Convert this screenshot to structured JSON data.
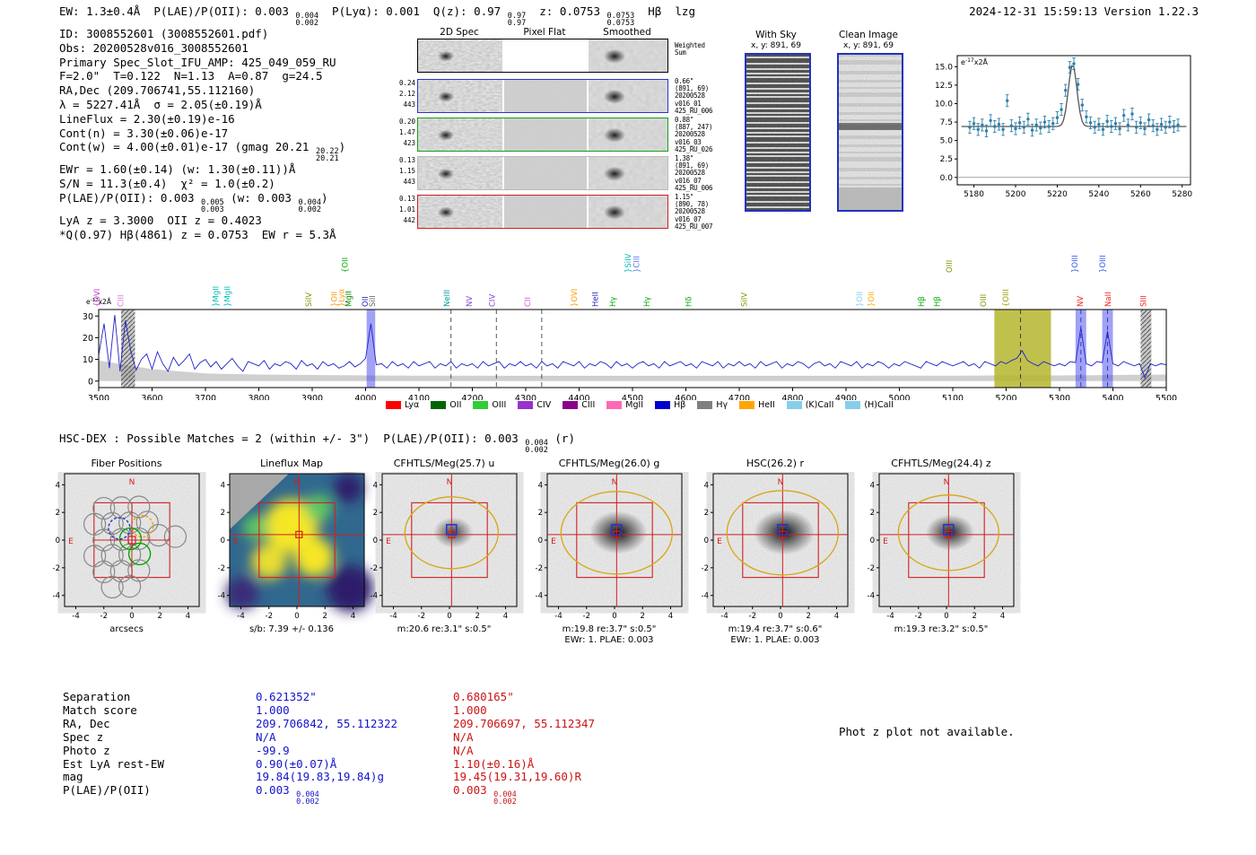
{
  "header": {
    "left_segments": [
      "EW: 1.3±0.4Å  P(LAE)/P(OII): 0.003 ",
      {
        "hi": "0.004",
        "lo": "0.002"
      },
      "  P(Lyα): 0.001  Q(z): 0.97 ",
      {
        "hi": "0.97",
        "lo": "0.97"
      },
      "  z: 0.0753 ",
      {
        "hi": "0.0753",
        "lo": "0.0753"
      },
      "  Hβ  lzg"
    ],
    "timestamp": "2024-12-31 15:59:13  Version 1.22.3"
  },
  "info_lines": [
    [
      "ID: 3008552601 (3008552601.pdf)"
    ],
    [
      "Obs: 20200528v016_3008552601"
    ],
    [
      "Primary Spec_Slot_IFU_AMP: 425_049_059_RU"
    ],
    [
      "F=2.0\"  T=0.122  N=1.13  A=0.87  g=24.5"
    ],
    [
      "RA,Dec (209.706741,55.112160)"
    ],
    [
      "λ = 5227.41Å  σ = 2.05(±0.19)Å"
    ],
    [
      "LineFlux = 2.30(±0.19)e-16"
    ],
    [
      "Cont(n) = 3.30(±0.06)e-17"
    ],
    [
      "Cont(w) = 4.00(±0.01)e-17 (gmag 20.21 ",
      {
        "hi": "20.22",
        "lo": "20.21"
      },
      ")"
    ],
    [
      "EWr = 1.60(±0.14) (w: 1.30(±0.11))Å"
    ],
    [
      "S/N = 11.3(±0.4)  χ² = 1.0(±0.2)"
    ],
    [
      "P(LAE)/P(OII): 0.003 ",
      {
        "hi": "0.005",
        "lo": "0.003"
      },
      " (w: 0.003 ",
      {
        "hi": "0.004",
        "lo": "0.002"
      },
      ")"
    ],
    [
      "LyA z = 3.3000  OII z = 0.4023"
    ],
    [
      "*Q(0.97) Hβ(4861) z = 0.0753  EW r = 5.3Å"
    ]
  ],
  "spec2d": {
    "col_headers": [
      "2D Spec",
      "Pixel Flat",
      "Smoothed"
    ],
    "weighted_sum": [
      "Weighted",
      "Sum"
    ],
    "rows": [
      {
        "left": [],
        "right": [],
        "border": "#000000"
      },
      {
        "left": [
          "0.24",
          "2.12",
          "443"
        ],
        "right": [
          "0.66\"",
          "(891, 69)",
          "20200528",
          "v016_01",
          "425_RU_006"
        ],
        "border": "#2a35c8"
      },
      {
        "left": [
          "0.20",
          "1.47",
          "423"
        ],
        "right": [
          "0.88\"",
          "(887, 247)",
          "20200528",
          "v016_03",
          "425_RU_026"
        ],
        "border": "#18a018"
      },
      {
        "left": [
          "0.13",
          "1.15",
          "443"
        ],
        "right": [
          "1.38\"",
          "(891, 69)",
          "20200528",
          "v016_07",
          "425_RU_006"
        ],
        "border": "none"
      },
      {
        "left": [
          "0.13",
          "1.01",
          "442"
        ],
        "right": [
          "1.15\"",
          "(890, 78)",
          "20200528",
          "v016_07",
          "425_RU_007"
        ],
        "border": "#d02020"
      }
    ]
  },
  "sky_panels": [
    {
      "title": "With Sky",
      "subtitle": "x, y: 891, 69"
    },
    {
      "title": "Clean Image",
      "subtitle": "x, y: 891, 69"
    }
  ],
  "chart_data": [
    {
      "type": "scatter",
      "name": "line-fit-zoom",
      "flux_label": {
        "base": "e",
        "sup": "-17",
        "rest": "x2Å"
      },
      "x_start": 5178,
      "x_step": 2,
      "y": [
        6.8,
        7.3,
        6.5,
        7.1,
        6.3,
        7.7,
        6.9,
        7.2,
        6.5,
        10.4,
        7.0,
        6.6,
        7.4,
        6.8,
        7.9,
        6.4,
        7.1,
        6.7,
        7.5,
        6.9,
        7.3,
        8.1,
        9.2,
        11.8,
        14.9,
        15.4,
        12.6,
        9.8,
        8.2,
        7.4,
        6.8,
        7.2,
        6.5,
        7.6,
        6.9,
        7.3,
        6.6,
        8.4,
        7.1,
        8.6,
        6.8,
        7.4,
        6.6,
        7.8,
        7.0,
        6.5,
        7.2,
        6.8,
        7.5,
        6.9,
        7.1
      ],
      "yerr": 0.8,
      "fit": {
        "center": 5227.41,
        "sigma": 2.05,
        "peak": 15.3,
        "continuum": 6.9
      },
      "xticks": [
        5180,
        5200,
        5220,
        5240,
        5260,
        5280
      ],
      "yticks": [
        "0.0",
        "2.5",
        "5.0",
        "7.5",
        "10.0",
        "12.5",
        "15.0"
      ],
      "ytick_vals": [
        0,
        2.5,
        5,
        7.5,
        10,
        12.5,
        15
      ],
      "xlim": [
        5172,
        5284
      ],
      "ylim": [
        -1,
        16.5
      ],
      "point_color": "#2e7fa8",
      "fit_color": "#555555"
    },
    {
      "type": "line",
      "name": "full-spectrum",
      "flux_label": {
        "base": "e",
        "sup": "-17",
        "rest": "x2Å"
      },
      "x_start": 3500,
      "x_step": 10,
      "values": [
        12,
        26.5,
        6,
        30.5,
        4.5,
        28,
        14,
        5,
        10,
        12.5,
        5.5,
        13.5,
        8,
        4.5,
        11,
        7,
        9.5,
        12.5,
        5.5,
        8.5,
        10,
        6.5,
        9,
        5.5,
        8,
        10.5,
        7,
        4.5,
        9,
        8,
        7,
        9.5,
        5.5,
        8,
        7,
        9,
        8,
        5.5,
        9.5,
        7,
        8,
        5.5,
        9,
        7,
        8,
        6,
        7,
        9,
        6.5,
        8,
        10.5,
        26.5,
        7.5,
        8,
        6,
        9,
        7,
        8,
        6,
        9,
        7,
        8,
        9,
        6,
        8,
        7,
        9,
        6,
        8,
        7,
        8,
        6,
        9,
        7,
        8,
        9,
        6,
        8,
        7,
        9,
        7,
        8,
        6,
        9,
        7,
        8,
        6,
        9,
        8,
        7,
        9,
        6,
        8,
        7,
        9,
        8,
        6,
        9,
        7,
        8,
        6,
        8,
        9,
        7,
        8,
        6,
        9,
        7,
        8,
        9,
        7,
        8,
        6,
        9,
        8,
        7,
        9,
        6,
        8,
        7,
        9,
        7,
        8,
        6,
        9,
        7,
        8,
        9,
        6,
        8,
        7,
        9,
        8,
        6,
        8,
        9,
        7,
        8,
        6,
        9,
        8,
        7,
        9,
        6,
        8,
        7,
        9,
        8,
        6,
        8,
        7,
        9,
        8,
        7,
        6,
        9,
        8,
        7,
        9,
        8,
        7,
        8,
        9,
        7,
        8,
        6,
        9,
        8,
        7,
        9,
        8,
        9.5,
        10.5,
        14,
        9.5,
        8,
        7,
        9,
        8,
        7,
        8,
        7,
        9,
        8.5,
        24.5,
        8,
        7,
        9,
        8.5,
        23,
        8,
        7,
        9,
        8,
        7,
        8,
        1.5,
        8,
        7,
        8,
        7.5
      ],
      "error_band_step": 100,
      "error_band": [
        9.5,
        5.5,
        3.5,
        3,
        2.8,
        2.6,
        2.5,
        2.5,
        2.4,
        2.4,
        2.4,
        2.4,
        2.4,
        2.4,
        2.4,
        2.5,
        2.5,
        2.6,
        2.6,
        2.8,
        3
      ],
      "xticks": [
        3500,
        3600,
        3700,
        3800,
        3900,
        4000,
        4100,
        4200,
        4300,
        4400,
        4500,
        4600,
        4700,
        4800,
        4900,
        5000,
        5100,
        5200,
        5300,
        5400,
        5500
      ],
      "yticks": [
        0,
        10,
        20,
        30
      ],
      "xlim": [
        3470,
        5540
      ],
      "ylim": [
        -3,
        33
      ],
      "line_color": "#2222c8",
      "bands": [
        {
          "x0": 3542,
          "x1": 3568,
          "kind": "hatch"
        },
        {
          "x0": 4002,
          "x1": 4018,
          "kind": "blue"
        },
        {
          "x0": 5178,
          "x1": 5284,
          "kind": "olive"
        },
        {
          "x0": 5330,
          "x1": 5350,
          "kind": "blue"
        },
        {
          "x0": 5380,
          "x1": 5400,
          "kind": "blue"
        },
        {
          "x0": 5452,
          "x1": 5472,
          "kind": "hatch"
        }
      ],
      "dashed_lines": [
        {
          "x": 4160,
          "color": "#444444"
        },
        {
          "x": 4245,
          "color": "#444444"
        },
        {
          "x": 4330,
          "color": "#444444"
        },
        {
          "x": 5227,
          "color": "#333333"
        },
        {
          "x": 5340,
          "color": "#2233aa"
        },
        {
          "x": 5390,
          "color": "#2233aa"
        }
      ],
      "line_labels": [
        [
          3502,
          "{OVI",
          "#cc33cc",
          1
        ],
        [
          3546,
          "CIII",
          "#dd77dd",
          1
        ],
        [
          3724,
          "}MgII",
          "#00bbbb",
          1
        ],
        [
          3746,
          "}MgII",
          "#00bbbb",
          1
        ],
        [
          3898,
          "SiIV",
          "#7a9a01",
          1
        ],
        [
          3946,
          "}OII",
          "#ff9900",
          1
        ],
        [
          3960,
          "}Lyα",
          "#ff9900",
          1
        ],
        [
          3973,
          "MgII",
          "#008800",
          1
        ],
        [
          3966,
          "{OII",
          "#00aa00",
          2
        ],
        [
          4004,
          "OII",
          "#2222bb",
          1
        ],
        [
          4018,
          "SiII",
          "#666666",
          1
        ],
        [
          4157,
          "NeIII",
          "#009999",
          1
        ],
        [
          4199,
          "NV",
          "#8844cc",
          1
        ],
        [
          4242,
          "CIV",
          "#8844cc",
          1
        ],
        [
          4308,
          "CII",
          "#dd55dd",
          1
        ],
        [
          4396,
          "}OVI",
          "#ff9900",
          1
        ],
        [
          4435,
          "HeII",
          "#2222bb",
          1
        ],
        [
          4468,
          "Hγ",
          "#00aa00",
          1
        ],
        [
          4497,
          "}SiIV",
          "#00bbbb",
          2
        ],
        [
          4513,
          "}CIII",
          "#5577ee",
          2
        ],
        [
          4532,
          "Hγ",
          "#00aa00",
          1
        ],
        [
          4610,
          "Hδ",
          "#00aa00",
          1
        ],
        [
          4714,
          "SiIV",
          "#7a9a01",
          1
        ],
        [
          4930,
          "}OII",
          "#88ccee",
          1
        ],
        [
          4952,
          "}OII",
          "#ffaa00",
          1
        ],
        [
          5046,
          "Hβ",
          "#00aa00",
          1
        ],
        [
          5076,
          "Hβ",
          "#00aa00",
          1
        ],
        [
          5098,
          "OIII",
          "#7a9a01",
          2
        ],
        [
          5162,
          "OIII",
          "#7a9a01",
          1
        ],
        [
          5204,
          "{OIII",
          "#999900",
          1
        ],
        [
          5334,
          "}OIII",
          "#3355ee",
          2
        ],
        [
          5344,
          "NV",
          "#ee2222",
          1
        ],
        [
          5386,
          "}OIII",
          "#3355ee",
          2
        ],
        [
          5396,
          "NaII",
          "#ee2222",
          1
        ],
        [
          5462,
          "SIII",
          "#ee2222",
          1
        ]
      ],
      "legend": [
        {
          "label": "Lyα",
          "color": "#ff0000"
        },
        {
          "label": "OII",
          "color": "#006400"
        },
        {
          "label": "OIII",
          "color": "#32cd32"
        },
        {
          "label": "CIV",
          "color": "#9932cc"
        },
        {
          "label": "CIII",
          "color": "#8b008b"
        },
        {
          "label": "MgII",
          "color": "#ff69b4"
        },
        {
          "label": "Hβ",
          "color": "#0000cd"
        },
        {
          "label": "Hγ",
          "color": "#808080"
        },
        {
          "label": "HeII",
          "color": "#ffa500"
        },
        {
          "label": "(K)CaII",
          "color": "#87ceeb"
        },
        {
          "label": "(H)CaII",
          "color": "#87ceeb"
        }
      ]
    }
  ],
  "hsc": {
    "segments": [
      "HSC-DEX : Possible Matches = 2 (within +/- 3\")  P(LAE)/P(OII): 0.003 ",
      {
        "hi": "0.004",
        "lo": "0.002"
      },
      " (r)"
    ]
  },
  "cutouts": {
    "tick_labels": [
      "-4",
      "-2",
      "0",
      "2",
      "4"
    ],
    "compass_n": "N",
    "compass_e": "E",
    "panels": [
      {
        "title": "Fiber Positions",
        "kind": "fiber",
        "caption1": "arcsecs",
        "caption2": ""
      },
      {
        "title": "Lineflux Map",
        "kind": "lineflux",
        "caption1": "s/b: 7.39 +/- 0.136",
        "caption2": ""
      },
      {
        "title": "CFHTLS/Meg(25.7) u",
        "kind": "galaxy",
        "caption1": "m:20.6 re:3.1\" s:0.5\"",
        "caption2": ""
      },
      {
        "title": "CFHTLS/Meg(26.0) g",
        "kind": "galaxy",
        "caption1": "m:19.8 re:3.7\" s:0.5\"",
        "caption2": "EWr: 1. PLAE: 0.003"
      },
      {
        "title": "HSC(26.2) r",
        "kind": "galaxy",
        "caption1": "m:19.4 re:3.7\" s:0.6\"",
        "caption2": "EWr: 1. PLAE: 0.003"
      },
      {
        "title": "CFHTLS/Meg(24.4) z",
        "kind": "galaxy",
        "caption1": "m:19.3 re:3.2\" s:0.5\"",
        "caption2": ""
      }
    ]
  },
  "match_table": {
    "rows": [
      {
        "label": "Separation",
        "blue": [
          "0.621352\""
        ],
        "red": [
          "0.680165\""
        ]
      },
      {
        "label": "Match score",
        "blue": [
          "1.000"
        ],
        "red": [
          "1.000"
        ]
      },
      {
        "label": "RA, Dec",
        "blue": [
          "209.706842, 55.112322"
        ],
        "red": [
          "209.706697, 55.112347"
        ]
      },
      {
        "label": "Spec z",
        "blue": [
          "N/A"
        ],
        "red": [
          "N/A"
        ]
      },
      {
        "label": "Photo z",
        "blue": [
          "-99.9"
        ],
        "red": [
          "N/A"
        ]
      },
      {
        "label": "Est LyA rest-EW",
        "blue": [
          "0.90(±0.07)Å"
        ],
        "red": [
          "1.10(±0.16)Å"
        ]
      },
      {
        "label": "mag",
        "blue": [
          "19.84(19.83,19.84)g"
        ],
        "red": [
          "19.45(19.31,19.60)R"
        ]
      },
      {
        "label": "P(LAE)/P(OII)",
        "blue": [
          "0.003 ",
          {
            "hi": "0.004",
            "lo": "0.002"
          }
        ],
        "red": [
          "0.003 ",
          {
            "hi": "0.004",
            "lo": "0.002"
          }
        ]
      }
    ],
    "note": "Phot z plot not available."
  }
}
